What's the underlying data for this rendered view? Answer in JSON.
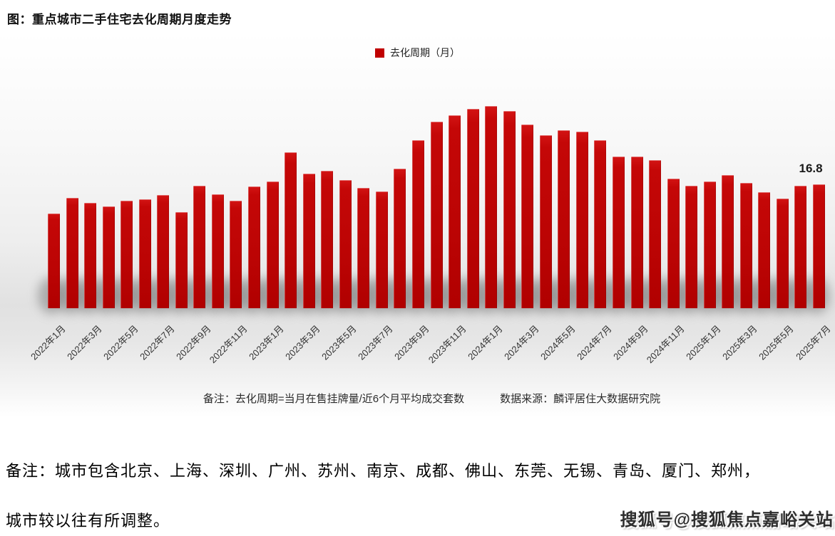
{
  "title": "图：重点城市二手住宅去化周期月度走势",
  "legend": {
    "label": "去化周期（月）",
    "color": "#C00000"
  },
  "chart_data": {
    "type": "bar",
    "title": "重点城市二手住宅去化周期月度走势",
    "series_name": "去化周期（月）",
    "bar_color": "#C00000",
    "grid": false,
    "legend_position": "top-center",
    "ylim": [
      0,
      28
    ],
    "x": [
      "2022年1月",
      "2022年2月",
      "2022年3月",
      "2022年4月",
      "2022年5月",
      "2022年6月",
      "2022年7月",
      "2022年8月",
      "2022年9月",
      "2022年10月",
      "2022年11月",
      "2022年12月",
      "2023年1月",
      "2023年2月",
      "2023年3月",
      "2023年4月",
      "2023年5月",
      "2023年6月",
      "2023年7月",
      "2023年8月",
      "2023年9月",
      "2023年10月",
      "2023年11月",
      "2023年12月",
      "2024年1月",
      "2024年2月",
      "2024年3月",
      "2024年4月",
      "2024年5月",
      "2024年6月",
      "2024年7月",
      "2024年8月",
      "2024年9月",
      "2024年10月",
      "2024年11月",
      "2024年12月",
      "2025年1月",
      "2025年2月",
      "2025年3月",
      "2025年4月",
      "2025年5月",
      "2025年6月",
      "2025年7月"
    ],
    "values": [
      12.9,
      15.0,
      14.3,
      13.8,
      14.6,
      14.8,
      15.4,
      13.1,
      16.6,
      15.5,
      14.6,
      16.5,
      17.2,
      21.2,
      18.3,
      18.7,
      17.4,
      16.3,
      15.9,
      19.0,
      22.8,
      25.3,
      26.2,
      27.1,
      27.5,
      26.8,
      25.0,
      23.5,
      24.2,
      24.0,
      22.8,
      20.6,
      20.6,
      20.1,
      17.6,
      16.6,
      17.2,
      18.1,
      17.0,
      15.8,
      14.9,
      16.6,
      16.8
    ],
    "tick_labels": [
      "2022年1月",
      "2022年3月",
      "2022年5月",
      "2022年7月",
      "2022年9月",
      "2022年11月",
      "2023年1月",
      "2023年3月",
      "2023年5月",
      "2023年7月",
      "2023年9月",
      "2023年11月",
      "2024年1月",
      "2024年3月",
      "2024年5月",
      "2024年7月",
      "2024年9月",
      "2024年11月",
      "2025年1月",
      "2025年3月",
      "2025年5月",
      "2025年7月"
    ],
    "last_value_label": "16.8"
  },
  "footnote": {
    "note": "备注：去化周期=当月在售挂牌量/近6个月平均成交套数",
    "source": "数据来源：麟评居住大数据研究院"
  },
  "remark": {
    "line1": "备注：城市包含北京、上海、深圳、广州、苏州、南京、成都、佛山、东莞、无锡、青岛、厦门、郑州，",
    "line2": "城市较以往有所调整。"
  },
  "watermark": "搜狐号@搜狐焦点嘉峪关站"
}
